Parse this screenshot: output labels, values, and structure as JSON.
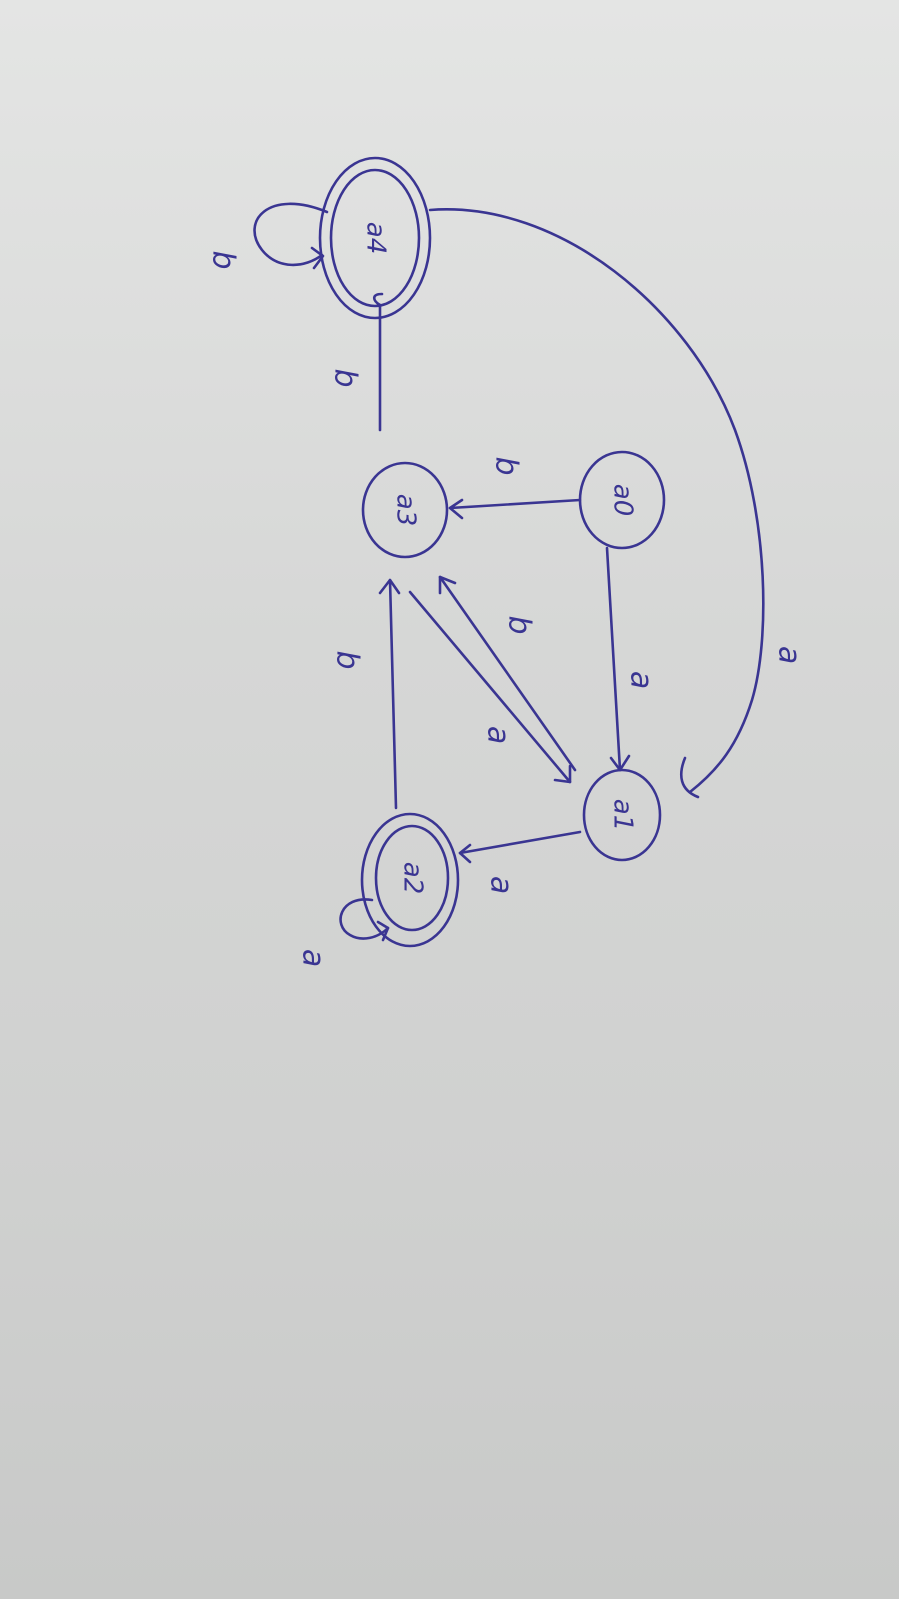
{
  "states": {
    "q0": "a0",
    "q1": "a1",
    "q2": "a2",
    "q3": "a3",
    "q4": "a4"
  },
  "accepting": [
    "q2",
    "q4"
  ],
  "transitions": {
    "q0_q3": "b",
    "q0_q1": "a",
    "q1_q2": "a",
    "q1_q3": "b",
    "q3_q1": "a",
    "q2_q3": "b",
    "q2_self": "a",
    "q3_q4": "b",
    "q4_self": "b",
    "q4_q1": "a"
  },
  "colors": {
    "ink": "#3a3592",
    "paper": "#d8d9d8"
  }
}
